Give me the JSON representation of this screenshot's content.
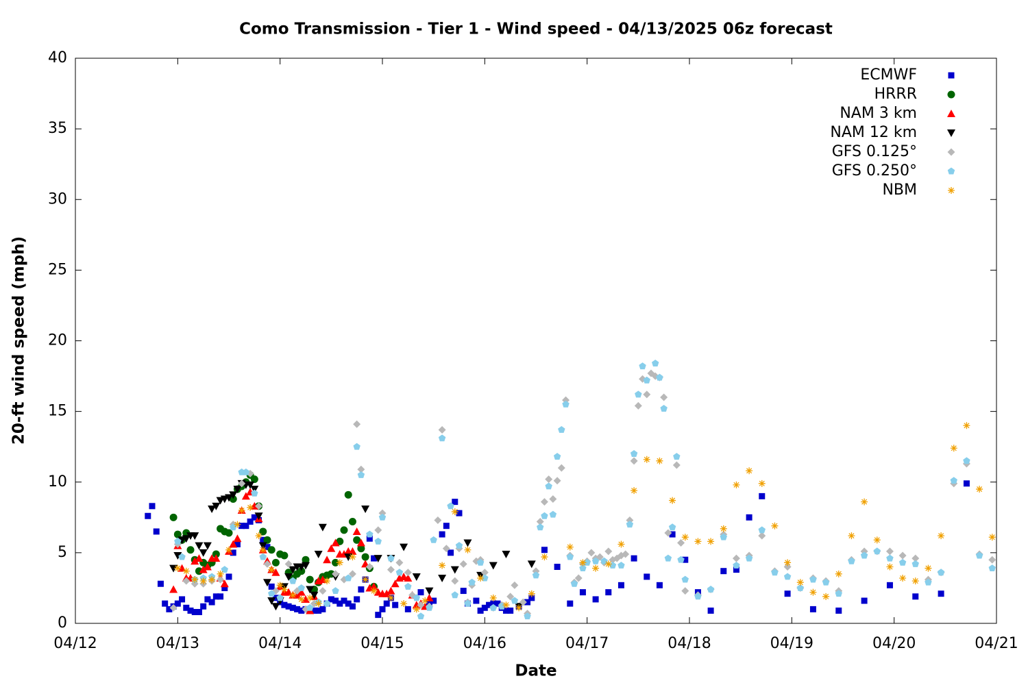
{
  "chart_data": {
    "type": "scatter",
    "title": "Como Transmission - Tier 1 - Wind speed - 04/13/2025 06z forecast",
    "x_label": "Date",
    "y_label": "20-ft wind speed (mph)",
    "xlim": [
      0,
      216
    ],
    "xticks": [
      {
        "value": 0,
        "label": "04/12"
      },
      {
        "value": 24,
        "label": "04/13"
      },
      {
        "value": 48,
        "label": "04/14"
      },
      {
        "value": 72,
        "label": "04/15"
      },
      {
        "value": 96,
        "label": "04/16"
      },
      {
        "value": 120,
        "label": "04/17"
      },
      {
        "value": 144,
        "label": "04/18"
      },
      {
        "value": 168,
        "label": "04/19"
      },
      {
        "value": 192,
        "label": "04/20"
      },
      {
        "value": 216,
        "label": "04/21"
      }
    ],
    "ylim": [
      0,
      40
    ],
    "yticks": [
      0,
      5,
      10,
      15,
      20,
      25,
      30,
      35,
      40
    ],
    "grid": false,
    "legend": "top-right",
    "series": [
      {
        "name": "ECMWF",
        "color": "#0000cc",
        "marker": "square",
        "x": [
          17,
          18,
          19,
          20,
          21,
          22,
          23,
          24,
          25,
          26,
          27,
          28,
          29,
          30,
          31,
          32,
          33,
          34,
          35,
          36,
          37,
          38,
          39,
          40,
          41,
          42,
          43,
          44,
          45,
          46,
          47,
          48,
          49,
          50,
          51,
          52,
          53,
          54,
          55,
          56,
          57,
          58,
          59,
          60,
          61,
          62,
          63,
          64,
          65,
          66,
          67,
          68,
          69,
          70,
          71,
          72,
          73,
          74,
          75,
          78,
          81,
          83,
          84,
          86,
          87,
          88,
          89,
          90,
          91,
          92,
          94,
          95,
          96,
          97,
          98,
          99,
          100,
          101,
          102,
          104,
          106,
          107,
          110,
          113,
          116,
          119,
          122,
          125,
          128,
          131,
          134,
          137,
          140,
          143,
          146,
          149,
          152,
          155,
          158,
          161,
          167,
          173,
          179,
          185,
          191,
          197,
          203,
          209
        ],
        "values": [
          7.6,
          8.3,
          6.5,
          2.8,
          1.4,
          1.0,
          1.2,
          1.4,
          1.7,
          1.1,
          0.9,
          0.8,
          0.8,
          1.2,
          1.7,
          1.5,
          1.9,
          1.9,
          2.5,
          3.3,
          5.0,
          5.6,
          6.9,
          6.9,
          7.2,
          7.5,
          7.3,
          5.9,
          5.4,
          2.6,
          1.8,
          1.5,
          1.3,
          1.2,
          1.1,
          1.0,
          0.9,
          1.0,
          1.0,
          0.9,
          0.9,
          1.0,
          1.4,
          1.7,
          1.6,
          1.4,
          1.6,
          1.4,
          1.2,
          1.7,
          2.4,
          3.1,
          6.0,
          4.6,
          0.6,
          1.0,
          1.4,
          1.8,
          1.3,
          1.0,
          2.2,
          1.5,
          1.6,
          6.3,
          6.9,
          5.0,
          8.6,
          7.8,
          2.3,
          1.4,
          1.6,
          0.9,
          1.1,
          1.3,
          1.4,
          1.4,
          1.1,
          0.9,
          0.9,
          1.2,
          1.5,
          1.8,
          5.2,
          4.0,
          1.4,
          2.2,
          1.7,
          2.2,
          2.7,
          4.6,
          3.3,
          2.7,
          6.3,
          4.5,
          2.2,
          0.9,
          3.7,
          3.8,
          7.5,
          9.0,
          2.1,
          1.0,
          0.9,
          1.6,
          2.7,
          1.9,
          2.1,
          9.9
        ]
      },
      {
        "name": "HRRR",
        "color": "#006400",
        "marker": "circle",
        "x": [
          23,
          24,
          25,
          26,
          27,
          28,
          29,
          30,
          31,
          32,
          33,
          34,
          35,
          36,
          37,
          38,
          39,
          40,
          41,
          42,
          43,
          44,
          45,
          46,
          47,
          48,
          49,
          50,
          51,
          52,
          53,
          54,
          55,
          56,
          57,
          58,
          59,
          60,
          61,
          62,
          63,
          64,
          65,
          66,
          67,
          68,
          69,
          70
        ],
        "values": [
          7.5,
          6.3,
          5.9,
          6.4,
          5.2,
          4.5,
          3.7,
          4.3,
          4.1,
          4.3,
          4.9,
          6.7,
          6.5,
          6.4,
          8.8,
          9.5,
          9.7,
          10.0,
          10.5,
          10.2,
          8.3,
          6.5,
          5.9,
          5.2,
          4.3,
          4.9,
          4.8,
          3.6,
          3.2,
          3.5,
          3.7,
          4.5,
          3.1,
          2.4,
          2.9,
          3.3,
          3.4,
          3.5,
          4.3,
          5.8,
          6.6,
          9.1,
          7.2,
          5.9,
          5.3,
          4.7,
          3.9,
          2.6
        ]
      },
      {
        "name": "NAM 3 km",
        "color": "#ff0000",
        "marker": "triangle-up",
        "x": [
          23,
          24,
          25,
          26,
          27,
          28,
          29,
          30,
          31,
          32,
          33,
          34,
          35,
          36,
          37,
          38,
          39,
          40,
          41,
          42,
          43,
          44,
          45,
          46,
          47,
          48,
          49,
          50,
          51,
          52,
          53,
          54,
          55,
          56,
          57,
          58,
          59,
          60,
          61,
          62,
          63,
          64,
          65,
          66,
          67,
          68,
          69,
          70,
          71,
          72,
          73,
          74,
          75,
          76,
          77,
          78,
          79,
          80,
          81,
          82,
          83
        ],
        "values": [
          2.4,
          5.5,
          3.9,
          3.2,
          3.2,
          4.4,
          4.6,
          3.8,
          4.0,
          4.6,
          4.6,
          3.2,
          2.8,
          5.1,
          5.6,
          6.0,
          8.0,
          9.0,
          9.3,
          8.3,
          7.4,
          5.2,
          4.4,
          3.8,
          3.6,
          2.6,
          2.2,
          2.2,
          2.0,
          2.0,
          2.2,
          1.7,
          0.9,
          1.9,
          3.0,
          3.1,
          4.5,
          5.3,
          5.7,
          4.9,
          4.9,
          5.1,
          5.1,
          6.5,
          5.7,
          4.2,
          2.5,
          2.6,
          2.2,
          2.1,
          2.1,
          2.3,
          2.8,
          3.2,
          3.3,
          3.2,
          2.0,
          1.3,
          1.4,
          1.2,
          1.8
        ]
      },
      {
        "name": "NAM 12 km",
        "color": "#000000",
        "marker": "triangle-down",
        "x": [
          23,
          24,
          25,
          26,
          27,
          28,
          29,
          30,
          31,
          32,
          33,
          34,
          35,
          36,
          37,
          38,
          39,
          40,
          41,
          42,
          43,
          44,
          45,
          46,
          47,
          48,
          49,
          50,
          51,
          52,
          53,
          54,
          55,
          56,
          57,
          58,
          61,
          64,
          68,
          71,
          74,
          77,
          80,
          83,
          86,
          89,
          92,
          95,
          98,
          101,
          104,
          107
        ],
        "values": [
          3.9,
          4.8,
          5.9,
          6.0,
          6.2,
          6.2,
          5.5,
          5.0,
          5.5,
          8.1,
          8.3,
          8.7,
          8.8,
          8.9,
          9.1,
          9.5,
          9.9,
          9.8,
          9.8,
          9.5,
          7.6,
          5.5,
          2.9,
          1.6,
          1.2,
          1.6,
          2.6,
          3.3,
          3.8,
          4.0,
          4.0,
          4.1,
          2.4,
          2.0,
          4.9,
          6.8,
          3.3,
          4.7,
          8.1,
          4.6,
          4.6,
          5.4,
          3.3,
          2.3,
          3.2,
          3.8,
          5.7,
          3.4,
          4.1,
          4.9,
          1.2,
          4.2
        ]
      },
      {
        "name": "GFS 0.125°",
        "color": "#b8b8b8",
        "marker": "diamond",
        "x": [
          23,
          24,
          26,
          28,
          30,
          32,
          34,
          37,
          39,
          41,
          43,
          45,
          47,
          50,
          52,
          54,
          56,
          58,
          61,
          63,
          65,
          66,
          67,
          69,
          71,
          72,
          74,
          76,
          78,
          79,
          81,
          83,
          85,
          86,
          87,
          89,
          90,
          91,
          92,
          93,
          94,
          95,
          96,
          98,
          100,
          102,
          103,
          105,
          106,
          108,
          109,
          110,
          111,
          112,
          113,
          114,
          115,
          116,
          117,
          118,
          119,
          120,
          121,
          122,
          123,
          124,
          125,
          126,
          127,
          128,
          129,
          130,
          131,
          132,
          133,
          134,
          135,
          136,
          137,
          138,
          139,
          141,
          142,
          143,
          146,
          149,
          152,
          155,
          158,
          161,
          164,
          167,
          170,
          173,
          176,
          179,
          182,
          185,
          188,
          191,
          194,
          197,
          200,
          203,
          206,
          209,
          212,
          215
        ],
        "values": [
          1.1,
          5.6,
          3.0,
          2.8,
          2.8,
          3.0,
          3.1,
          7.0,
          9.9,
          10.6,
          8.3,
          4.2,
          2.3,
          4.2,
          2.3,
          1.0,
          1.4,
          2.3,
          3.5,
          3.1,
          3.5,
          14.1,
          10.9,
          4.0,
          6.6,
          7.8,
          3.8,
          4.3,
          3.6,
          2.0,
          1.3,
          1.2,
          7.3,
          13.7,
          5.3,
          3.0,
          5.3,
          4.2,
          1.5,
          2.7,
          4.4,
          4.5,
          3.6,
          1.1,
          1.3,
          1.9,
          2.7,
          1.5,
          0.7,
          3.7,
          7.2,
          8.6,
          10.2,
          8.8,
          10.1,
          11.0,
          15.8,
          4.8,
          2.9,
          3.2,
          4.2,
          4.4,
          5.0,
          4.6,
          4.7,
          4.3,
          5.1,
          4.5,
          4.6,
          4.8,
          4.9,
          7.3,
          11.5,
          15.4,
          17.3,
          16.2,
          17.7,
          17.5,
          17.4,
          16.0,
          6.4,
          11.2,
          5.7,
          2.3,
          2.0,
          2.4,
          6.3,
          4.6,
          4.8,
          6.2,
          3.7,
          4.0,
          2.5,
          3.2,
          3.0,
          2.3,
          4.5,
          5.1,
          5.1,
          5.1,
          4.8,
          4.6,
          3.1,
          3.6,
          9.9,
          11.3,
          4.9,
          4.5
        ]
      },
      {
        "name": "GFS 0.250°",
        "color": "#87ceeb",
        "marker": "pentagon",
        "x": [
          24,
          25,
          28,
          30,
          32,
          35,
          37,
          39,
          40,
          42,
          44,
          46,
          48,
          51,
          53,
          55,
          57,
          59,
          61,
          64,
          66,
          67,
          69,
          71,
          72,
          74,
          76,
          78,
          80,
          81,
          83,
          84,
          86,
          88,
          89,
          90,
          92,
          93,
          95,
          96,
          98,
          100,
          103,
          106,
          108,
          109,
          110,
          111,
          112,
          113,
          114,
          115,
          116,
          117,
          119,
          120,
          122,
          124,
          126,
          128,
          130,
          131,
          132,
          133,
          134,
          136,
          137,
          138,
          139,
          140,
          141,
          142,
          143,
          146,
          149,
          152,
          155,
          158,
          161,
          164,
          167,
          170,
          173,
          176,
          179,
          182,
          185,
          188,
          191,
          194,
          197,
          200,
          203,
          206,
          209,
          212,
          215
        ],
        "values": [
          5.8,
          4.7,
          3.1,
          3.2,
          3.3,
          3.8,
          6.8,
          10.7,
          10.7,
          9.2,
          4.7,
          2.1,
          1.8,
          3.0,
          2.5,
          1.1,
          1.5,
          1.4,
          2.3,
          3.2,
          12.5,
          10.5,
          6.3,
          5.8,
          7.5,
          4.6,
          3.6,
          2.6,
          1.8,
          0.5,
          1.1,
          5.9,
          13.1,
          8.3,
          2.0,
          5.5,
          1.4,
          2.9,
          4.3,
          3.2,
          1.1,
          1.2,
          1.6,
          0.5,
          3.4,
          6.8,
          7.6,
          9.7,
          7.7,
          11.8,
          13.7,
          15.5,
          4.7,
          2.8,
          3.9,
          4.3,
          4.4,
          4.4,
          4.1,
          4.1,
          7.0,
          12.0,
          16.2,
          18.2,
          17.2,
          18.4,
          17.4,
          15.2,
          4.6,
          6.8,
          11.8,
          4.5,
          3.1,
          1.9,
          2.4,
          6.1,
          4.1,
          4.6,
          6.6,
          3.6,
          3.3,
          2.5,
          3.1,
          2.9,
          2.1,
          4.4,
          4.8,
          5.1,
          4.6,
          4.3,
          4.2,
          2.9,
          3.6,
          10.1,
          11.5,
          4.8,
          3.9
        ]
      },
      {
        "name": "NBM",
        "color": "#f0a000",
        "marker": "asterisk",
        "x": [
          24,
          26,
          28,
          30,
          32,
          34,
          36,
          38,
          39,
          41,
          43,
          44,
          46,
          48,
          49,
          51,
          53,
          55,
          57,
          59,
          62,
          65,
          68,
          70,
          74,
          77,
          80,
          82,
          86,
          89,
          92,
          95,
          98,
          101,
          104,
          107,
          110,
          116,
          119,
          122,
          125,
          128,
          131,
          134,
          137,
          140,
          143,
          146,
          149,
          152,
          155,
          158,
          161,
          164,
          167,
          170,
          173,
          176,
          179,
          182,
          185,
          188,
          191,
          194,
          197,
          200,
          203,
          206,
          209,
          212,
          215
        ],
        "values": [
          3.9,
          3.7,
          3.1,
          3.0,
          3.1,
          3.5,
          5.2,
          7.0,
          8.0,
          8.2,
          6.2,
          5.2,
          3.8,
          2.7,
          2.4,
          2.0,
          1.7,
          1.8,
          1.4,
          3.0,
          4.3,
          4.7,
          3.1,
          2.3,
          1.8,
          1.4,
          1.0,
          1.6,
          4.1,
          7.9,
          5.2,
          3.2,
          1.8,
          1.3,
          1.1,
          2.1,
          4.7,
          5.4,
          4.3,
          3.9,
          4.2,
          5.6,
          9.4,
          11.6,
          11.5,
          8.7,
          6.1,
          5.8,
          5.8,
          6.7,
          9.8,
          10.8,
          9.9,
          6.9,
          4.3,
          2.9,
          2.2,
          1.9,
          3.5,
          6.2,
          8.6,
          5.9,
          4.0,
          3.2,
          3.0,
          3.9,
          6.2,
          12.4,
          14.0,
          9.5,
          6.1
        ]
      }
    ]
  }
}
